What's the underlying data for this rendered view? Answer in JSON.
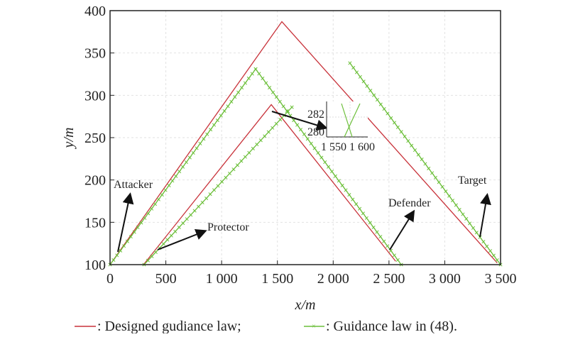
{
  "chart_data": {
    "type": "line",
    "xlabel": "x/m",
    "ylabel": "y/m",
    "xlim": [
      0,
      3500
    ],
    "ylim": [
      100,
      400
    ],
    "x_ticks": [
      0,
      500,
      1000,
      1500,
      2000,
      2500,
      3000,
      3500
    ],
    "x_tick_labels": [
      "0",
      "500",
      "1 000",
      "1 500",
      "2 000",
      "2 500",
      "3 000",
      "3 500"
    ],
    "y_ticks": [
      100,
      150,
      200,
      250,
      300,
      350,
      400
    ],
    "y_tick_labels": [
      "100",
      "150",
      "200",
      "250",
      "300",
      "350",
      "400"
    ],
    "grid": true,
    "colors": {
      "designed": "#c8323a",
      "reference": "#6cbf3a"
    },
    "legend": {
      "placement": "bottom",
      "entries": [
        ": Designed gudiance law;",
        ": Guidance law in (48)."
      ]
    },
    "series": [
      {
        "name": ": Designed gudiance law;",
        "style": "red-line",
        "segments": [
          [
            [
              0,
              100
            ],
            [
              1540,
              387
            ],
            [
              3470,
              102
            ]
          ],
          [
            [
              300,
              100
            ],
            [
              1445,
              289
            ],
            [
              2560,
              104
            ]
          ]
        ]
      },
      {
        "name": ": Guidance law in (48).",
        "style": "green-line-x",
        "segments": [
          [
            [
              0,
              100
            ],
            [
              1305,
              331
            ],
            [
              2610,
              100
            ]
          ],
          [
            [
              305,
              100
            ],
            [
              1630,
              286
            ]
          ],
          [
            [
              2150,
              338
            ],
            [
              3500,
              100
            ]
          ]
        ]
      }
    ],
    "annotations": [
      "Attacker",
      "Protector",
      "Defender",
      "Target"
    ],
    "inset": {
      "x_tick_labels": [
        "1 550",
        "1 600"
      ],
      "y_tick_labels": [
        "282",
        "280"
      ]
    }
  }
}
